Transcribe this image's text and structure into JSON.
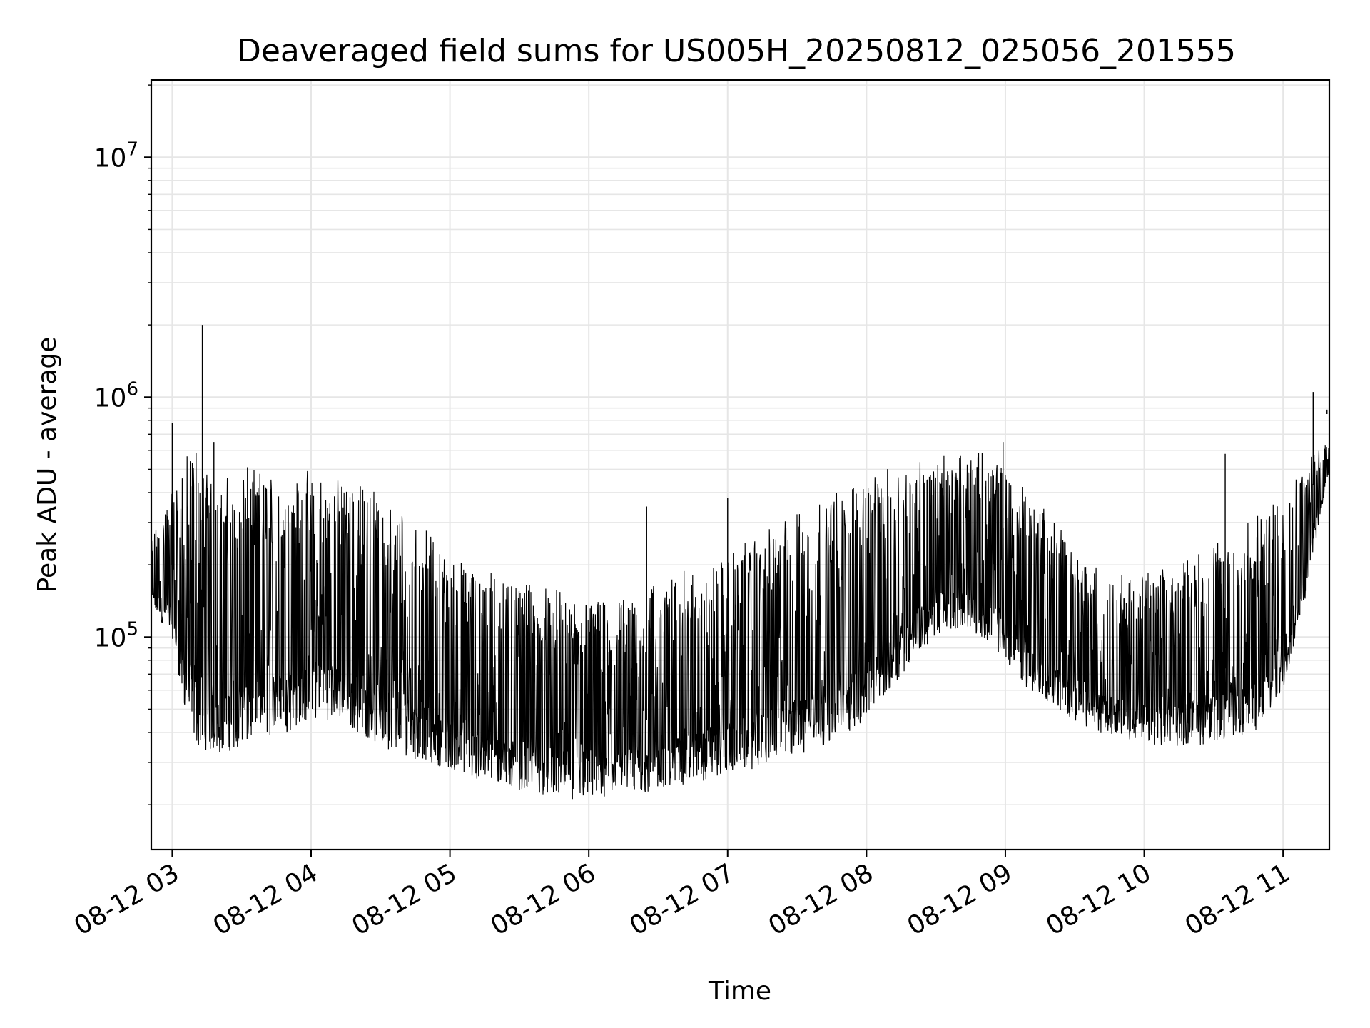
{
  "chart_data": {
    "type": "line",
    "title": "Deaveraged field sums for US005H_20250812_025056_201555",
    "xlabel": "Time",
    "ylabel": "Peak ADU - average",
    "x_axis": "datetime",
    "y_scale": "log",
    "xlim": [
      "2025-08-12T02:50:56",
      "2025-08-12T11:20:00"
    ],
    "ylim": [
      13000,
      21000000
    ],
    "x_ticks": [
      {
        "value": "2025-08-12T03:00:00",
        "label": "08-12 03"
      },
      {
        "value": "2025-08-12T04:00:00",
        "label": "08-12 04"
      },
      {
        "value": "2025-08-12T05:00:00",
        "label": "08-12 05"
      },
      {
        "value": "2025-08-12T06:00:00",
        "label": "08-12 06"
      },
      {
        "value": "2025-08-12T07:00:00",
        "label": "08-12 07"
      },
      {
        "value": "2025-08-12T08:00:00",
        "label": "08-12 08"
      },
      {
        "value": "2025-08-12T09:00:00",
        "label": "08-12 09"
      },
      {
        "value": "2025-08-12T10:00:00",
        "label": "08-12 10"
      },
      {
        "value": "2025-08-12T11:00:00",
        "label": "08-12 11"
      }
    ],
    "y_ticks": [
      {
        "value": 100000,
        "base": "10",
        "exp": "5"
      },
      {
        "value": 1000000,
        "base": "10",
        "exp": "6"
      },
      {
        "value": 10000000,
        "base": "10",
        "exp": "7"
      }
    ],
    "grid": true,
    "legend": "none",
    "line_color": "#000000",
    "series": [
      {
        "x": [
          "2025-08-12T02:51:00",
          "2025-08-12T03:00:00",
          "2025-08-12T03:05:00",
          "2025-08-12T03:10:00",
          "2025-08-12T03:20:00",
          "2025-08-12T03:30:00",
          "2025-08-12T03:40:00",
          "2025-08-12T03:50:00",
          "2025-08-12T04:00:00",
          "2025-08-12T04:10:00",
          "2025-08-12T04:20:00",
          "2025-08-12T04:30:00",
          "2025-08-12T04:40:00",
          "2025-08-12T04:50:00",
          "2025-08-12T05:00:00",
          "2025-08-12T05:10:00",
          "2025-08-12T05:20:00",
          "2025-08-12T05:30:00",
          "2025-08-12T05:40:00",
          "2025-08-12T05:50:00",
          "2025-08-12T06:00:00",
          "2025-08-12T06:10:00",
          "2025-08-12T06:20:00",
          "2025-08-12T06:30:00",
          "2025-08-12T06:40:00",
          "2025-08-12T06:50:00",
          "2025-08-12T07:00:00",
          "2025-08-12T07:10:00",
          "2025-08-12T07:20:00",
          "2025-08-12T07:30:00",
          "2025-08-12T07:40:00",
          "2025-08-12T07:50:00",
          "2025-08-12T08:00:00",
          "2025-08-12T08:10:00",
          "2025-08-12T08:20:00",
          "2025-08-12T08:30:00",
          "2025-08-12T08:40:00",
          "2025-08-12T08:50:00",
          "2025-08-12T09:00:00",
          "2025-08-12T09:10:00",
          "2025-08-12T09:20:00",
          "2025-08-12T09:30:00",
          "2025-08-12T09:40:00",
          "2025-08-12T09:50:00",
          "2025-08-12T10:00:00",
          "2025-08-12T10:10:00",
          "2025-08-12T10:20:00",
          "2025-08-12T10:30:00",
          "2025-08-12T10:40:00",
          "2025-08-12T10:50:00",
          "2025-08-12T11:00:00",
          "2025-08-12T11:10:00",
          "2025-08-12T11:20:00"
        ],
        "upper": [
          250000,
          400000,
          500000,
          600000,
          400000,
          450000,
          450000,
          450000,
          450000,
          420000,
          400000,
          350000,
          300000,
          250000,
          200000,
          180000,
          170000,
          160000,
          150000,
          140000,
          130000,
          130000,
          140000,
          160000,
          170000,
          180000,
          200000,
          230000,
          260000,
          300000,
          340000,
          380000,
          420000,
          460000,
          500000,
          520000,
          540000,
          550000,
          500000,
          400000,
          300000,
          220000,
          180000,
          170000,
          170000,
          180000,
          200000,
          220000,
          250000,
          300000,
          400000,
          500000,
          700000
        ],
        "lower": [
          130000,
          100000,
          50000,
          35000,
          32000,
          35000,
          38000,
          40000,
          45000,
          45000,
          40000,
          35000,
          32000,
          30000,
          28000,
          25000,
          24000,
          23000,
          22000,
          21000,
          21000,
          21000,
          22000,
          23000,
          24000,
          25000,
          27000,
          28000,
          30000,
          32000,
          35000,
          38000,
          45000,
          60000,
          80000,
          100000,
          110000,
          100000,
          80000,
          60000,
          50000,
          45000,
          40000,
          38000,
          36000,
          35000,
          35000,
          36000,
          38000,
          40000,
          60000,
          150000,
          500000
        ],
        "spikes": [
          {
            "x": "2025-08-12T03:13:00",
            "y": 2000000
          },
          {
            "x": "2025-08-12T03:00:00",
            "y": 780000
          },
          {
            "x": "2025-08-12T03:18:00",
            "y": 650000
          },
          {
            "x": "2025-08-12T06:25:00",
            "y": 350000
          },
          {
            "x": "2025-08-12T07:00:00",
            "y": 380000
          },
          {
            "x": "2025-08-12T08:59:00",
            "y": 650000
          },
          {
            "x": "2025-08-12T10:35:00",
            "y": 580000
          },
          {
            "x": "2025-08-12T11:13:00",
            "y": 1050000
          },
          {
            "x": "2025-08-12T11:19:00",
            "y": 850000
          }
        ]
      }
    ]
  }
}
